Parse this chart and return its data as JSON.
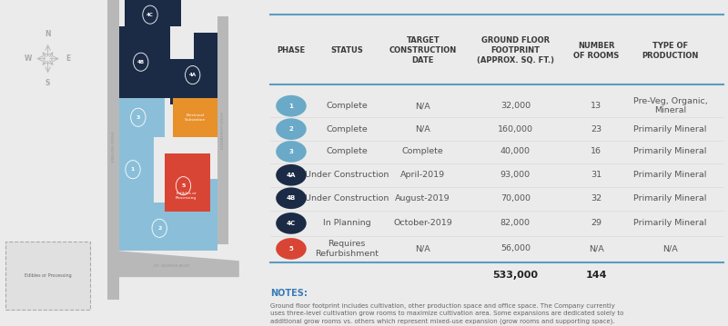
{
  "bg_color": "#ebebeb",
  "map_bg": "#d8d8d8",
  "road_color": "#b8b8b8",
  "building_colors": {
    "phase1": "#8bbfd9",
    "phase2": "#8bbfd9",
    "phase3": "#8bbfd9",
    "phase4A": "#1c2b45",
    "phase4B": "#1c2b45",
    "phase4C": "#1c2b45",
    "phase5": "#d94535",
    "electrical": "#e8902a"
  },
  "circle_colors": {
    "1": "#6aaac8",
    "2": "#6aaac8",
    "3": "#6aaac8",
    "4A": "#1c2b45",
    "4B": "#1c2b45",
    "4C": "#1c2b45",
    "5": "#d94535"
  },
  "header_line_color": "#5b9dc0",
  "col_headers": [
    "PHASE",
    "STATUS",
    "TARGET\nCONSTRUCTION\nDATE",
    "GROUND FLOOR\nFOOTPRINT\n(APPROX. SQ. FT.)",
    "NUMBER\nOF ROOMS",
    "TYPE OF\nPRODUCTION"
  ],
  "rows": [
    {
      "phase": "1",
      "status": "Complete",
      "date": "N/A",
      "footprint": "32,000",
      "rooms": "13",
      "type": "Pre-Veg, Organic,\nMineral"
    },
    {
      "phase": "2",
      "status": "Complete",
      "date": "N/A",
      "footprint": "160,000",
      "rooms": "23",
      "type": "Primarily Mineral"
    },
    {
      "phase": "3",
      "status": "Complete",
      "date": "Complete",
      "footprint": "40,000",
      "rooms": "16",
      "type": "Primarily Mineral"
    },
    {
      "phase": "4A",
      "status": "Under Construction",
      "date": "April-2019",
      "footprint": "93,000",
      "rooms": "31",
      "type": "Primarily Mineral"
    },
    {
      "phase": "4B",
      "status": "Under Construction",
      "date": "August-2019",
      "footprint": "70,000",
      "rooms": "32",
      "type": "Primarily Mineral"
    },
    {
      "phase": "4C",
      "status": "In Planning",
      "date": "October-2019",
      "footprint": "82,000",
      "rooms": "29",
      "type": "Primarily Mineral"
    },
    {
      "phase": "5",
      "status": "Requires\nRefurbishment",
      "date": "N/A",
      "footprint": "56,000",
      "rooms": "N/A",
      "type": "N/A"
    }
  ],
  "total_footprint": "533,000",
  "total_rooms": "144",
  "notes_title": "NOTES:",
  "notes_text": "Ground floor footprint includes cultivation, other production space and office space. The Company currently\nuses three-level cultivation grow rooms to maximize cultivation area. Some expansions are dedicated solely to\nadditional grow rooms vs. others which represent mixed-use expansion (grow rooms and supporting space).\nEstimated production capacity is dependent on a multitudinal of factors and subject to a variation of baseline\nexpectation."
}
